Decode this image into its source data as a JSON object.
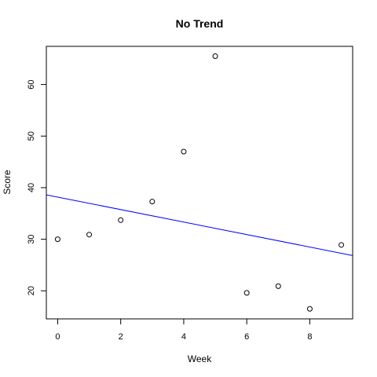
{
  "chart_data": {
    "type": "scatter",
    "title": "No Trend",
    "xlabel": "Week",
    "ylabel": "Score",
    "xlim": [
      -0.36,
      9.36
    ],
    "ylim": [
      14.56,
      67.4
    ],
    "x_ticks": [
      0,
      2,
      4,
      6,
      8
    ],
    "y_ticks": [
      20,
      30,
      40,
      50,
      60
    ],
    "grid": false,
    "legend": "none",
    "points": {
      "x": [
        0,
        1,
        2,
        3,
        4,
        5,
        6,
        7,
        8,
        9
      ],
      "y": [
        30.0,
        30.9,
        33.7,
        37.3,
        47.0,
        65.5,
        19.6,
        20.9,
        16.5,
        28.9
      ]
    },
    "trend_line": {
      "intercept": 38.17,
      "slope": -1.21,
      "color": "#0000ff"
    },
    "colors": {
      "points": "#000000",
      "line": "#0000ff",
      "axes": "#000000"
    }
  }
}
